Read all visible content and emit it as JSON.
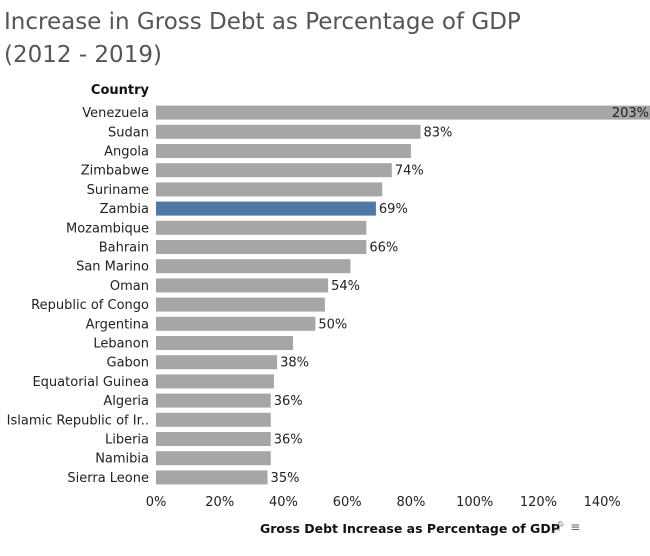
{
  "title_line1": "Increase in Gross Debt as Percentage of GDP",
  "title_line2": "(2012 - 2019)",
  "column_header": "Country",
  "highlight_color": "#4e79a7",
  "bar_color": "#a6a6a6",
  "icons": [
    "pin-icon",
    "sort-icon"
  ],
  "chart_data": {
    "type": "bar",
    "orientation": "horizontal",
    "title": "Increase in Gross Debt as Percentage of GDP (2012 - 2019)",
    "ylabel": "Country",
    "xlabel": "Gross Debt Increase as Percentage of GDP",
    "xlim": [
      0,
      155
    ],
    "xticks": [
      0,
      20,
      40,
      60,
      80,
      100,
      120,
      140
    ],
    "xtick_labels": [
      "0%",
      "20%",
      "40%",
      "60%",
      "80%",
      "100%",
      "120%",
      "140%"
    ],
    "categories": [
      "Venezuela",
      "Sudan",
      "Angola",
      "Zimbabwe",
      "Suriname",
      "Zambia",
      "Mozambique",
      "Bahrain",
      "San Marino",
      "Oman",
      "Republic of Congo",
      "Argentina",
      "Lebanon",
      "Gabon",
      "Equatorial Guinea",
      "Algeria",
      "Islamic Republic of Ir..",
      "Liberia",
      "Namibia",
      "Sierra Leone"
    ],
    "values": [
      203,
      83,
      80,
      74,
      71,
      69,
      66,
      66,
      61,
      54,
      53,
      50,
      43,
      38,
      37,
      36,
      36,
      36,
      36,
      35
    ],
    "data_labels": [
      "203%",
      "83%",
      "",
      "74%",
      "",
      "69%",
      "",
      "66%",
      "",
      "54%",
      "",
      "50%",
      "",
      "38%",
      "",
      "36%",
      "",
      "36%",
      "",
      "35%"
    ],
    "highlighted": "Zambia",
    "grid": false
  }
}
